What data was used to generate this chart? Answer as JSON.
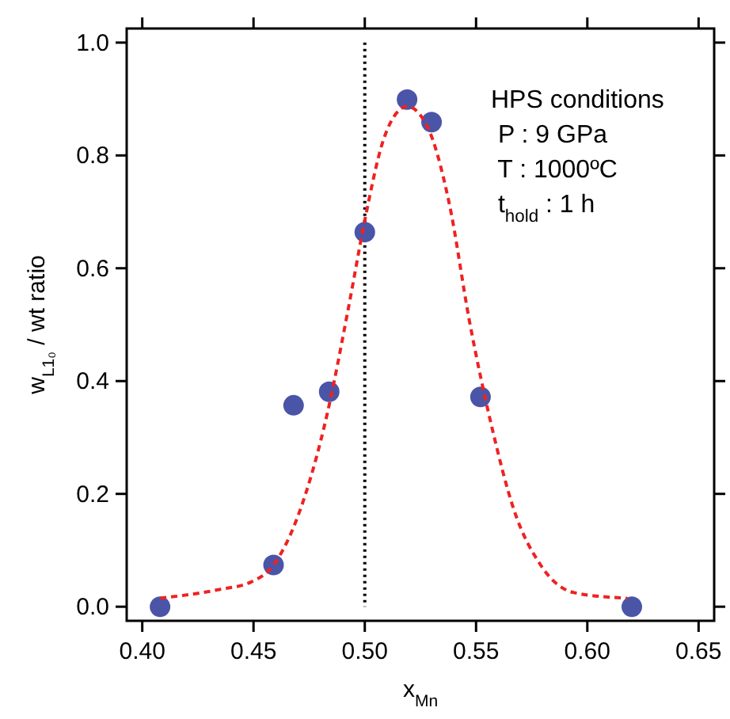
{
  "chart_data": {
    "type": "scatter",
    "xlabel": "x$_{Mn}$",
    "ylabel": "w$_{L1₀}$ / wt ratio",
    "xlim": [
      0.393,
      0.657
    ],
    "ylim": [
      -0.025,
      1.025
    ],
    "xticks": [
      {
        "value": 0.4,
        "label": "0.40"
      },
      {
        "value": 0.45,
        "label": "0.45"
      },
      {
        "value": 0.5,
        "label": "0.50"
      },
      {
        "value": 0.55,
        "label": "0.55"
      },
      {
        "value": 0.6,
        "label": "0.60"
      },
      {
        "value": 0.65,
        "label": "0.65"
      }
    ],
    "yticks": [
      {
        "value": 0,
        "label": "0.0"
      },
      {
        "value": 0.2,
        "label": "0.2"
      },
      {
        "value": 0.4,
        "label": "0.4"
      },
      {
        "value": 0.6,
        "label": "0.6"
      },
      {
        "value": 0.8,
        "label": "0.8"
      },
      {
        "value": 1,
        "label": "1.0"
      }
    ],
    "grid": false,
    "marker": "circle",
    "series": [
      {
        "color": "#4a55a8",
        "x": [
          0.408,
          0.459,
          0.468,
          0.484,
          0.5,
          0.519,
          0.53,
          0.552,
          0.62
        ],
        "values": [
          0,
          0.074,
          0.357,
          0.381,
          0.664,
          0.899,
          0.859,
          0.372,
          0
        ]
      },
      {
        "type": "line",
        "color": "#ee2222",
        "marker": "none",
        "line_style": "dashed",
        "x": [
          0.408,
          0.434,
          0.449,
          0.459,
          0.471,
          0.483,
          0.493,
          0.5,
          0.508,
          0.516,
          0.519,
          0.528,
          0.538,
          0.547,
          0.557,
          0.567,
          0.579,
          0.594,
          0.618
        ],
        "values": [
          0.015,
          0.03,
          0.044,
          0.074,
          0.172,
          0.34,
          0.537,
          0.685,
          0.823,
          0.882,
          0.887,
          0.852,
          0.714,
          0.507,
          0.32,
          0.172,
          0.074,
          0.025,
          0.015
        ]
      }
    ],
    "ref_lines": [
      {
        "axis": "x",
        "value": 0.5,
        "color": "#000000",
        "line_style": "dotted"
      }
    ],
    "annotations": [
      "HPS conditions",
      " P : 9 GPa",
      " T : 1000ºC",
      " t$_{hold}$ : 1 h"
    ]
  }
}
